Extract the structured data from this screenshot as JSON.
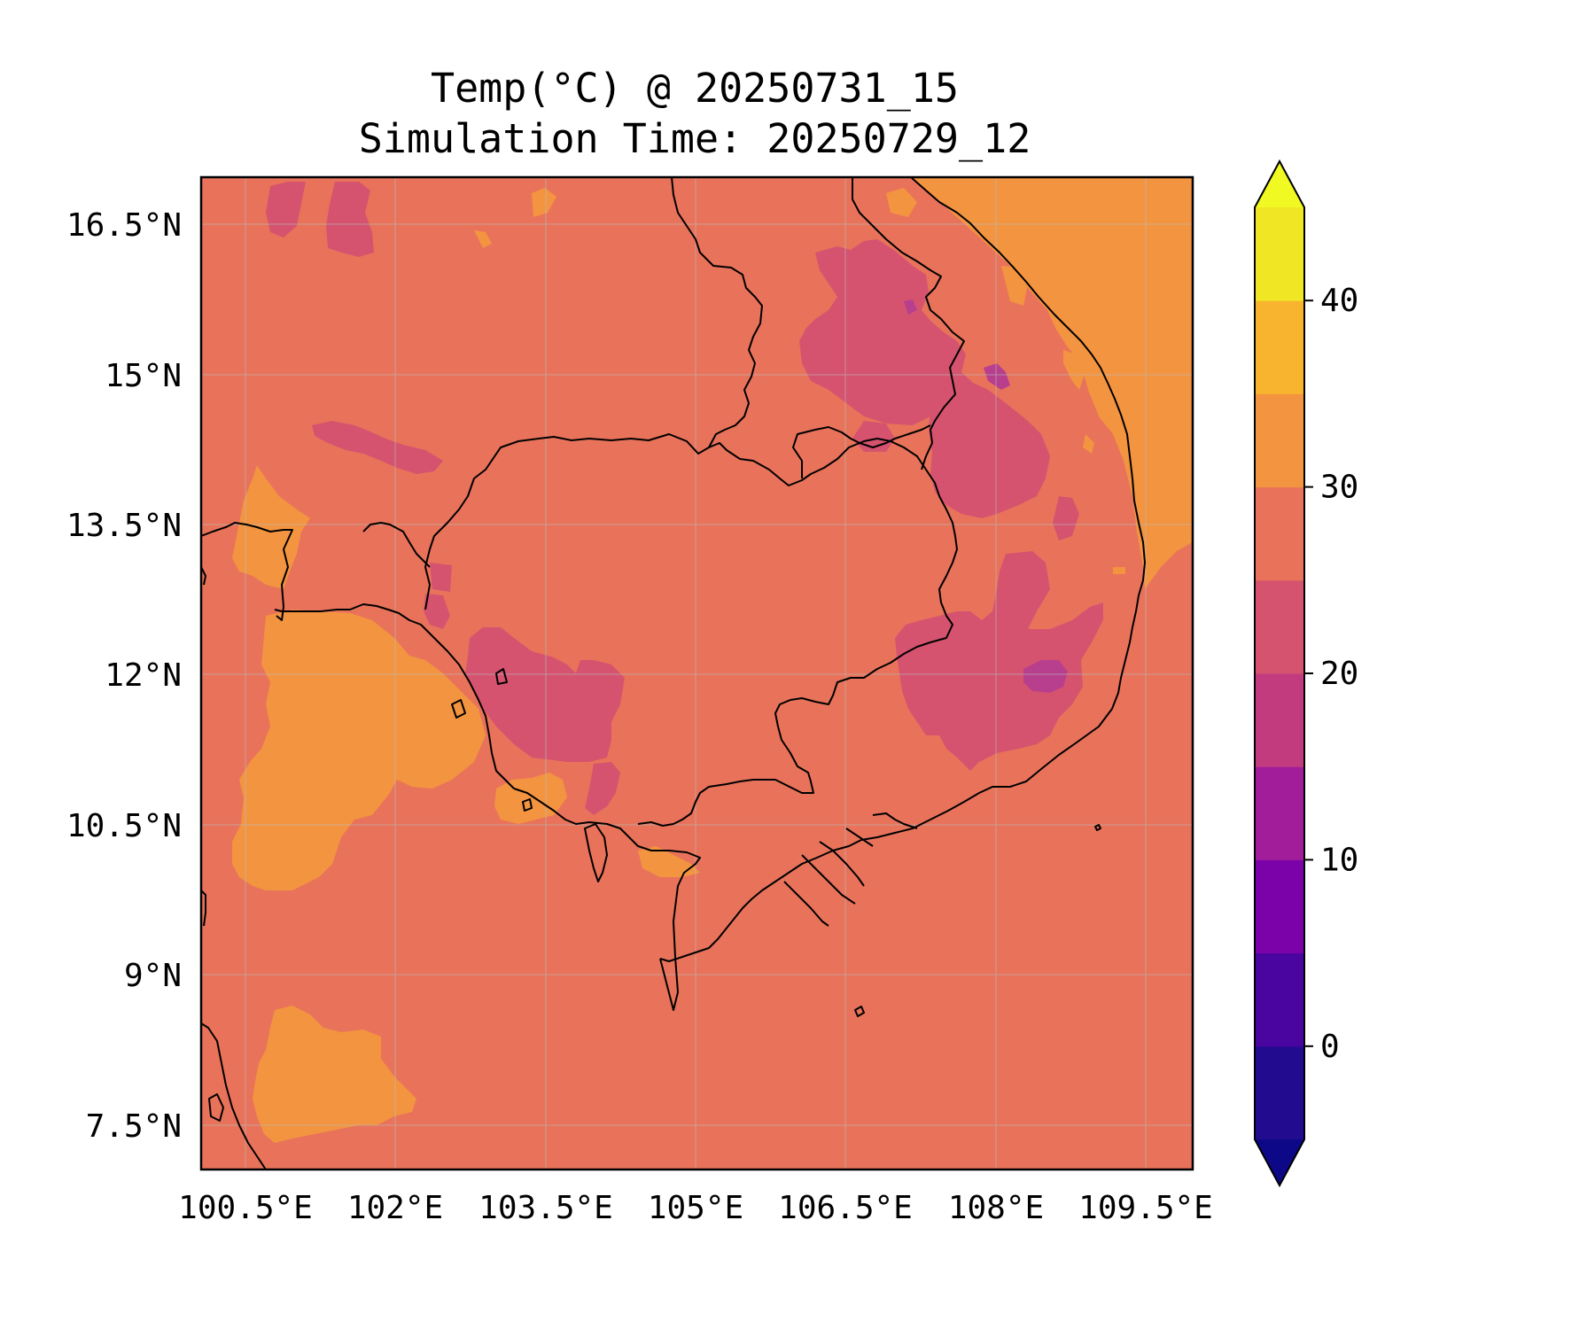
{
  "title": {
    "line1": "Temp(°C) @ 20250731_15",
    "line2": "Simulation Time: 20250729_12"
  },
  "map": {
    "lat_ticks": [
      "16.5°N",
      "15°N",
      "13.5°N",
      "12°N",
      "10.5°N",
      "9°N",
      "7.5°N"
    ],
    "lon_ticks": [
      "100.5°E",
      "102°E",
      "103.5°E",
      "105°E",
      "106.5°E",
      "108°E",
      "109.5°E"
    ],
    "lat_range": [
      7,
      17
    ],
    "lon_range": [
      100.5,
      110.5
    ],
    "gridlines": true,
    "coastlines_and_borders": true,
    "variable": "temperature",
    "unit": "°C",
    "dominant_level_colors": {
      "25-30": "#e8735a",
      "30-35": "#f39440",
      "20-25": "#d5536f",
      "15-20": "#b83f8e",
      "35-40": "#f9b42f"
    }
  },
  "colorbar": {
    "tick_labels": [
      "40",
      "30",
      "20",
      "10",
      "0"
    ],
    "levels": [
      -5,
      0,
      5,
      10,
      15,
      20,
      25,
      30,
      35,
      40,
      45
    ],
    "extend": "both",
    "colors": [
      "#230b8f",
      "#4a04a0",
      "#7a02a8",
      "#a21d9a",
      "#c33b7f",
      "#d5536f",
      "#e8735a",
      "#f39440",
      "#f9b42f",
      "#f1e624"
    ],
    "under_color": "#0d0887",
    "over_color": "#f0f921",
    "colormap": "plasma"
  }
}
